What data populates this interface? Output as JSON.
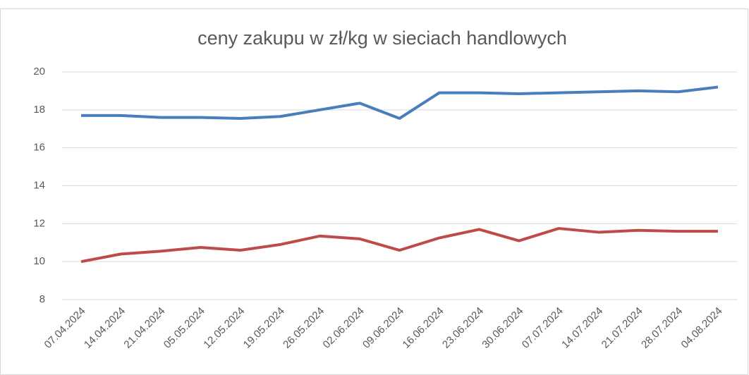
{
  "chart_data": {
    "type": "line",
    "title": "ceny zakupu w zł/kg  w sieciach handlowych",
    "categories": [
      "07.04.2024",
      "14.04.2024",
      "21.04.2024",
      "05.05.2024",
      "12.05.2024",
      "19.05.2024",
      "26.05.2024",
      "02.06.2024",
      "09.06.2024",
      "16.06.2024",
      "23.06.2024",
      "30.06.2024",
      "07.07.2024",
      "14.07.2024",
      "21.07.2024",
      "28.07.2024",
      "04.08.2024"
    ],
    "series": [
      {
        "color": "#4a7ebb",
        "values": [
          17.7,
          17.7,
          17.6,
          17.6,
          17.55,
          17.65,
          18.0,
          18.35,
          17.55,
          18.9,
          18.9,
          18.85,
          18.9,
          18.95,
          19.0,
          18.95,
          19.2
        ]
      },
      {
        "color": "#be4b48",
        "values": [
          10.0,
          10.4,
          10.55,
          10.75,
          10.6,
          10.9,
          11.35,
          11.2,
          10.6,
          11.25,
          11.7,
          11.1,
          11.75,
          11.55,
          11.65,
          11.6,
          11.6
        ]
      }
    ],
    "ylim": [
      8,
      20
    ],
    "yticks": [
      8,
      10,
      12,
      14,
      16,
      18,
      20
    ],
    "grid": true
  }
}
